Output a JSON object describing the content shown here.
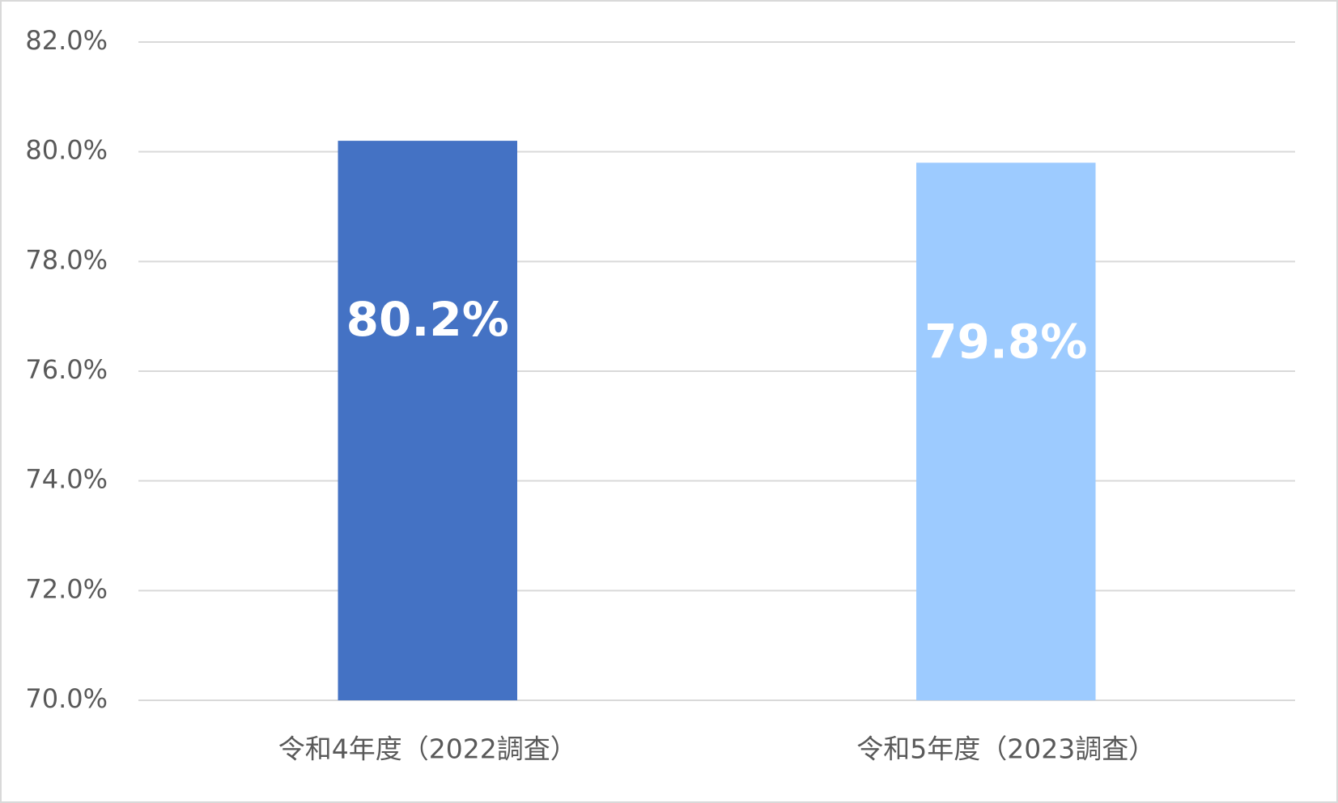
{
  "chart_data": {
    "type": "bar",
    "categories": [
      "令和4年度（2022調査）",
      "令和5年度（2023調査）"
    ],
    "values": [
      80.2,
      79.8
    ],
    "value_labels": [
      "80.2%",
      "79.8%"
    ],
    "colors": [
      "#4472c4",
      "#9dcbff"
    ],
    "ylim": [
      70,
      82
    ],
    "yticks": [
      {
        "value": 70,
        "label": "70.0%"
      },
      {
        "value": 72,
        "label": "72.0%"
      },
      {
        "value": 74,
        "label": "74.0%"
      },
      {
        "value": 76,
        "label": "76.0%"
      },
      {
        "value": 78,
        "label": "78.0%"
      },
      {
        "value": 80,
        "label": "80.0%"
      },
      {
        "value": 82,
        "label": "82.0%"
      }
    ],
    "grid": true
  }
}
